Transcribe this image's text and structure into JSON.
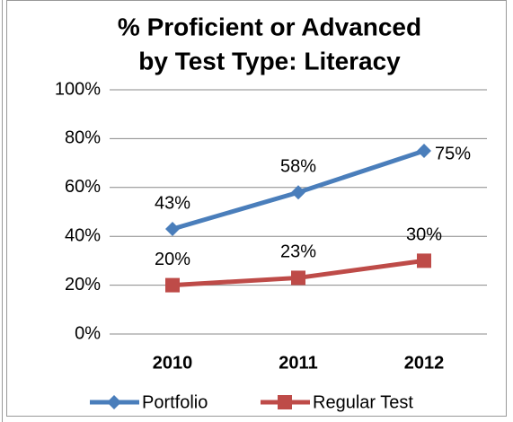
{
  "chart_data": {
    "type": "line",
    "title": [
      "% Proficient or Advanced",
      "by Test Type: Literacy"
    ],
    "categories": [
      "2010",
      "2011",
      "2012"
    ],
    "series": [
      {
        "name": "Portfolio",
        "color": "#4a7ebb",
        "marker": "diamond",
        "values": [
          43,
          58,
          75
        ],
        "value_labels": [
          "43%",
          "58%",
          "75%"
        ]
      },
      {
        "name": "Regular Test",
        "color": "#be4b48",
        "marker": "square",
        "values": [
          20,
          23,
          30
        ],
        "value_labels": [
          "20%",
          "23%",
          "30%"
        ]
      }
    ],
    "ylim": [
      0,
      100
    ],
    "yticks": [
      {
        "value": 0,
        "label": "0%"
      },
      {
        "value": 20,
        "label": "20%"
      },
      {
        "value": 40,
        "label": "40%"
      },
      {
        "value": 60,
        "label": "60%"
      },
      {
        "value": 80,
        "label": "80%"
      },
      {
        "value": 100,
        "label": "100%"
      }
    ],
    "grid": true,
    "legend": "bottom"
  }
}
